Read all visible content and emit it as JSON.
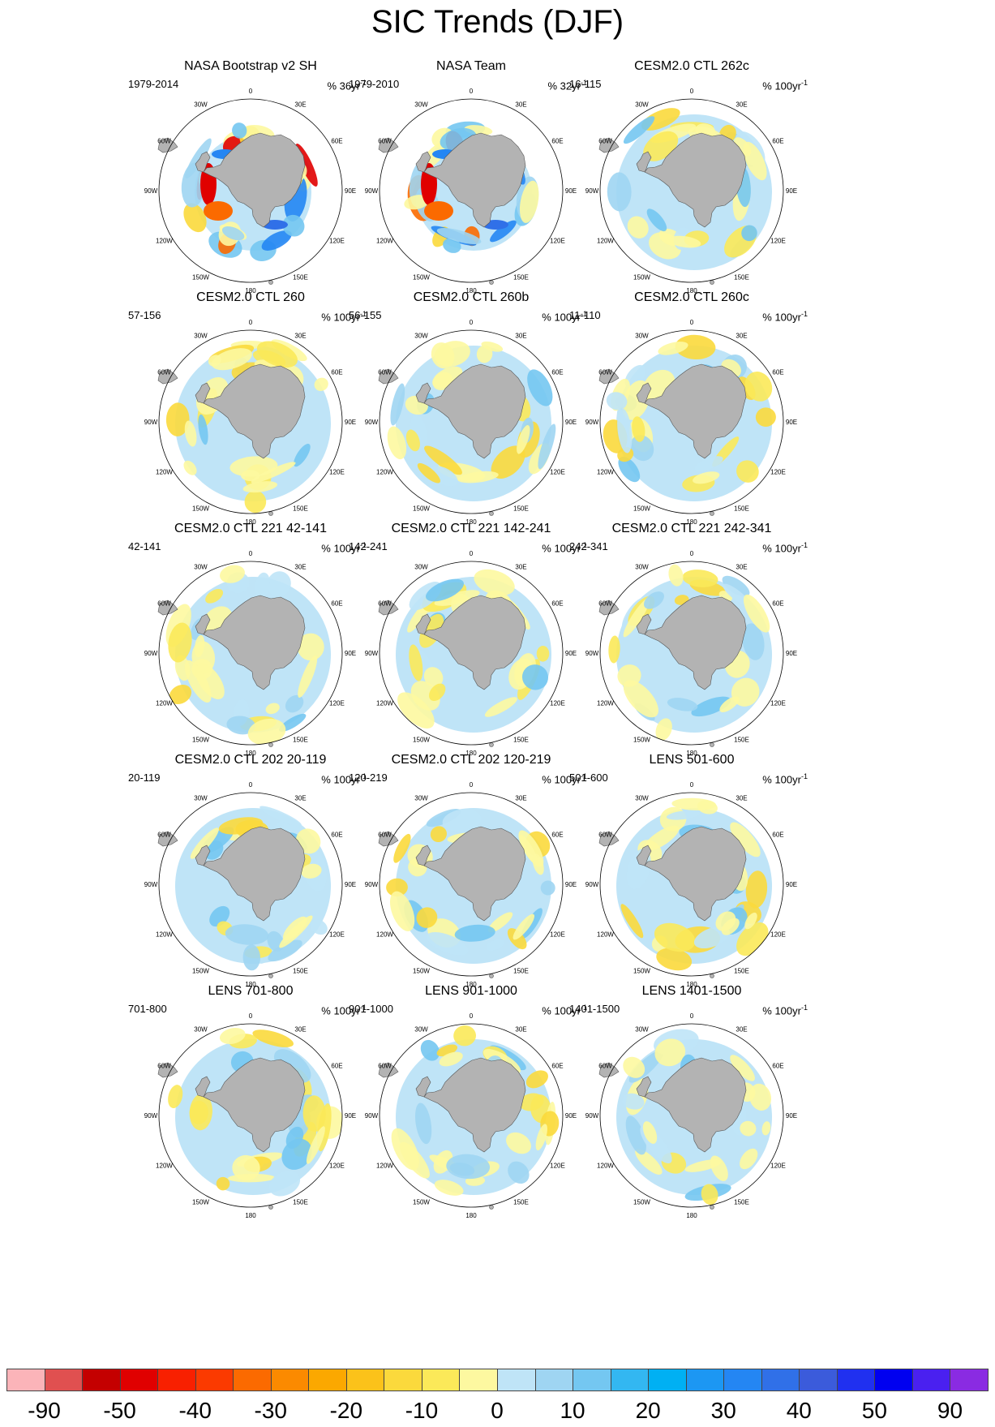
{
  "title": "SIC Trends (DJF)",
  "lon_labels": [
    "0",
    "30E",
    "60E",
    "90E",
    "120E",
    "150E",
    "180",
    "150W",
    "120W",
    "90W",
    "60W",
    "30W"
  ],
  "panels": [
    {
      "title": "NASA Bootstrap v2 SH",
      "period": "1979-2014",
      "units_prefix": "% 36yr",
      "units_exp": "-1"
    },
    {
      "title": "NASA Team",
      "period": "1979-2010",
      "units_prefix": "% 32yr",
      "units_exp": "-1"
    },
    {
      "title": "CESM2.0 CTL 262c",
      "period": "16-115",
      "units_prefix": "% 100yr",
      "units_exp": "-1"
    },
    {
      "title": "CESM2.0 CTL 260",
      "period": "57-156",
      "units_prefix": "% 100yr",
      "units_exp": "-1"
    },
    {
      "title": "CESM2.0 CTL 260b",
      "period": "56-155",
      "units_prefix": "% 100yr",
      "units_exp": "-1"
    },
    {
      "title": "CESM2.0 CTL 260c",
      "period": "11-110",
      "units_prefix": "% 100yr",
      "units_exp": "-1"
    },
    {
      "title": "CESM2.0 CTL 221 42-141",
      "period": "42-141",
      "units_prefix": "% 100yr",
      "units_exp": "-1"
    },
    {
      "title": "CESM2.0 CTL 221 142-241",
      "period": "142-241",
      "units_prefix": "% 100yr",
      "units_exp": "-1"
    },
    {
      "title": "CESM2.0 CTL 221 242-341",
      "period": "242-341",
      "units_prefix": "% 100yr",
      "units_exp": "-1"
    },
    {
      "title": "CESM2.0 CTL 202 20-119",
      "period": "20-119",
      "units_prefix": "% 100yr",
      "units_exp": "-1"
    },
    {
      "title": "CESM2.0 CTL 202 120-219",
      "period": "120-219",
      "units_prefix": "% 100yr",
      "units_exp": "-1"
    },
    {
      "title": "LENS 501-600",
      "period": "501-600",
      "units_prefix": "% 100yr",
      "units_exp": "-1"
    },
    {
      "title": "LENS 701-800",
      "period": "701-800",
      "units_prefix": "% 100yr",
      "units_exp": "-1"
    },
    {
      "title": "LENS 901-1000",
      "period": "901-1000",
      "units_prefix": "% 100yr",
      "units_exp": "-1"
    },
    {
      "title": "LENS 1401-1500",
      "period": "1401-1500",
      "units_prefix": "% 100yr",
      "units_exp": "-1"
    }
  ],
  "colorbar": {
    "colors": [
      "#fbb4b9",
      "#e05050",
      "#c40000",
      "#e00000",
      "#f82000",
      "#fb3a00",
      "#fb6a00",
      "#fb8a00",
      "#fba800",
      "#fbc21a",
      "#fbd93c",
      "#fbe959",
      "#fdf8a0",
      "#bfe4f7",
      "#9fd5f2",
      "#74c7f1",
      "#33b7f1",
      "#00b0f3",
      "#1c97f3",
      "#2486f3",
      "#3070e8",
      "#3b5bdb",
      "#2030f0",
      "#0000f0",
      "#4a20f0",
      "#8a2be2"
    ],
    "labels": [
      "-90",
      "-50",
      "-40",
      "-30",
      "-20",
      "-10",
      "0",
      "10",
      "20",
      "30",
      "40",
      "50",
      "90"
    ]
  }
}
